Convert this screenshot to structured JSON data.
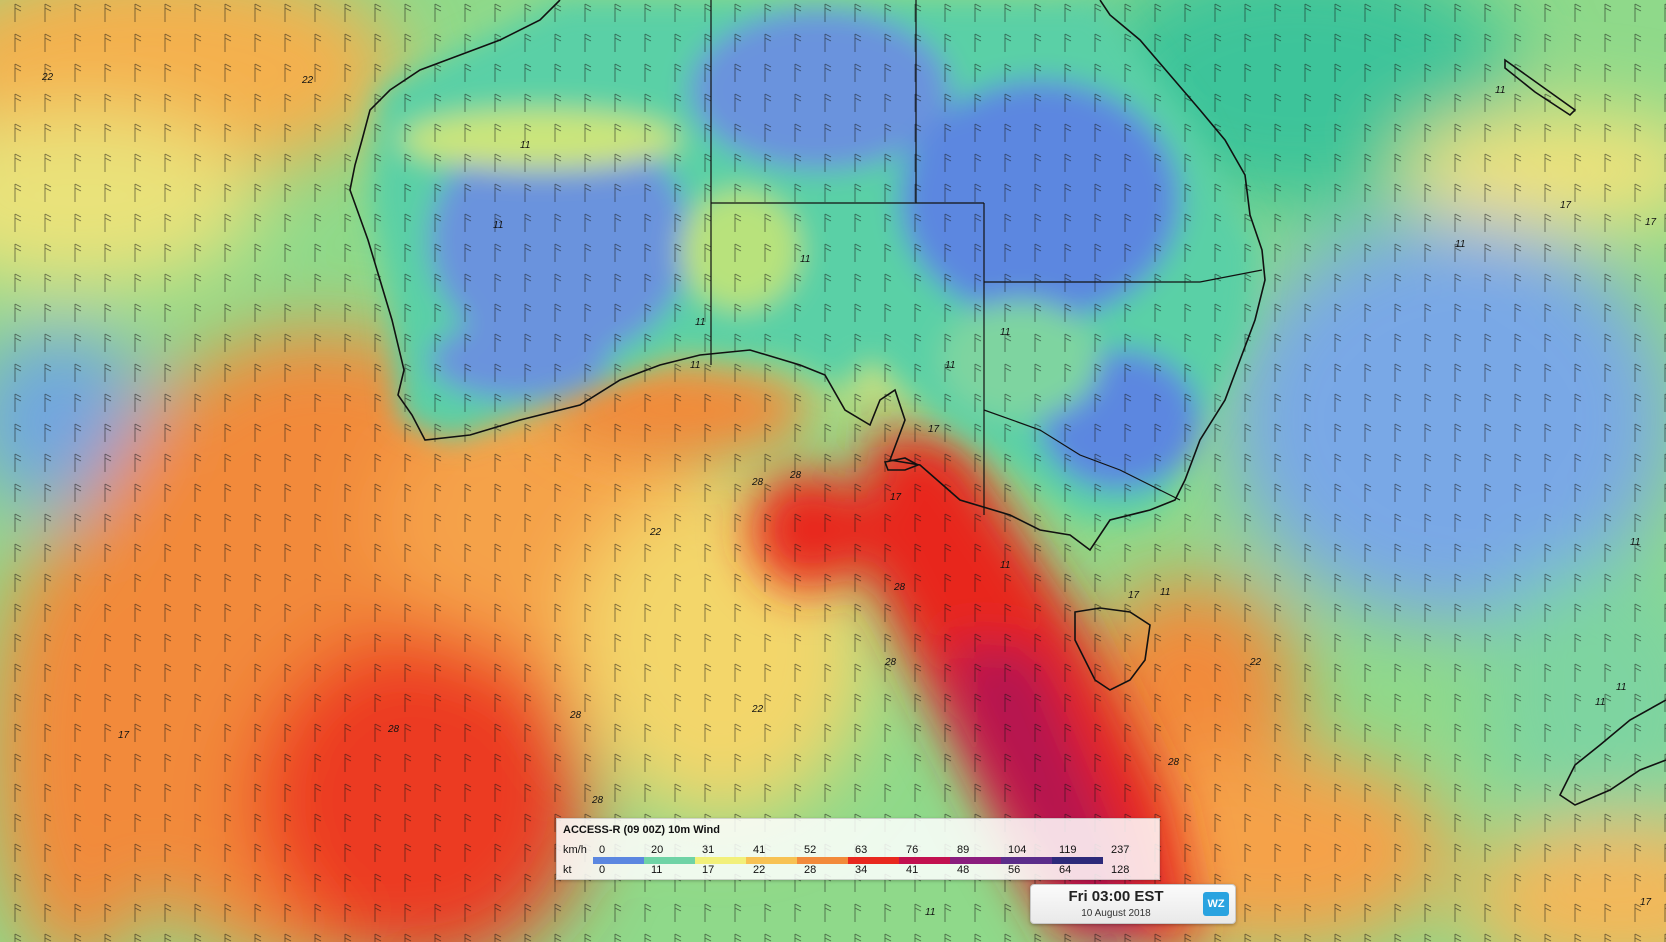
{
  "legend": {
    "title": "ACCESS-R (09 00Z) 10m Wind",
    "kmh_label": "km/h",
    "kt_label": "kt",
    "kmh_ticks": [
      "0",
      "20",
      "31",
      "41",
      "52",
      "63",
      "76",
      "89",
      "104",
      "119",
      "237"
    ],
    "kt_ticks": [
      "0",
      "11",
      "17",
      "22",
      "28",
      "34",
      "41",
      "48",
      "56",
      "64",
      "128"
    ],
    "colors": [
      "#5b87e0",
      "#6fd3a5",
      "#f2f07a",
      "#f7c253",
      "#f28a3a",
      "#e8281e",
      "#c2114f",
      "#8a1d7d",
      "#5b2d8a",
      "#2d2a7a"
    ]
  },
  "time": {
    "main": "Fri 03:00 EST",
    "date": "10 August 2018",
    "logo": "WZ"
  },
  "map": {
    "contour_labels": [
      "22",
      "22",
      "11",
      "11",
      "11",
      "11",
      "11",
      "11",
      "17",
      "11",
      "22",
      "28",
      "28",
      "17",
      "28",
      "28",
      "22",
      "17",
      "28",
      "28",
      "28",
      "11",
      "11",
      "11",
      "11",
      "17",
      "17",
      "22",
      "28",
      "11",
      "11",
      "11",
      "17",
      "11",
      "17"
    ]
  }
}
